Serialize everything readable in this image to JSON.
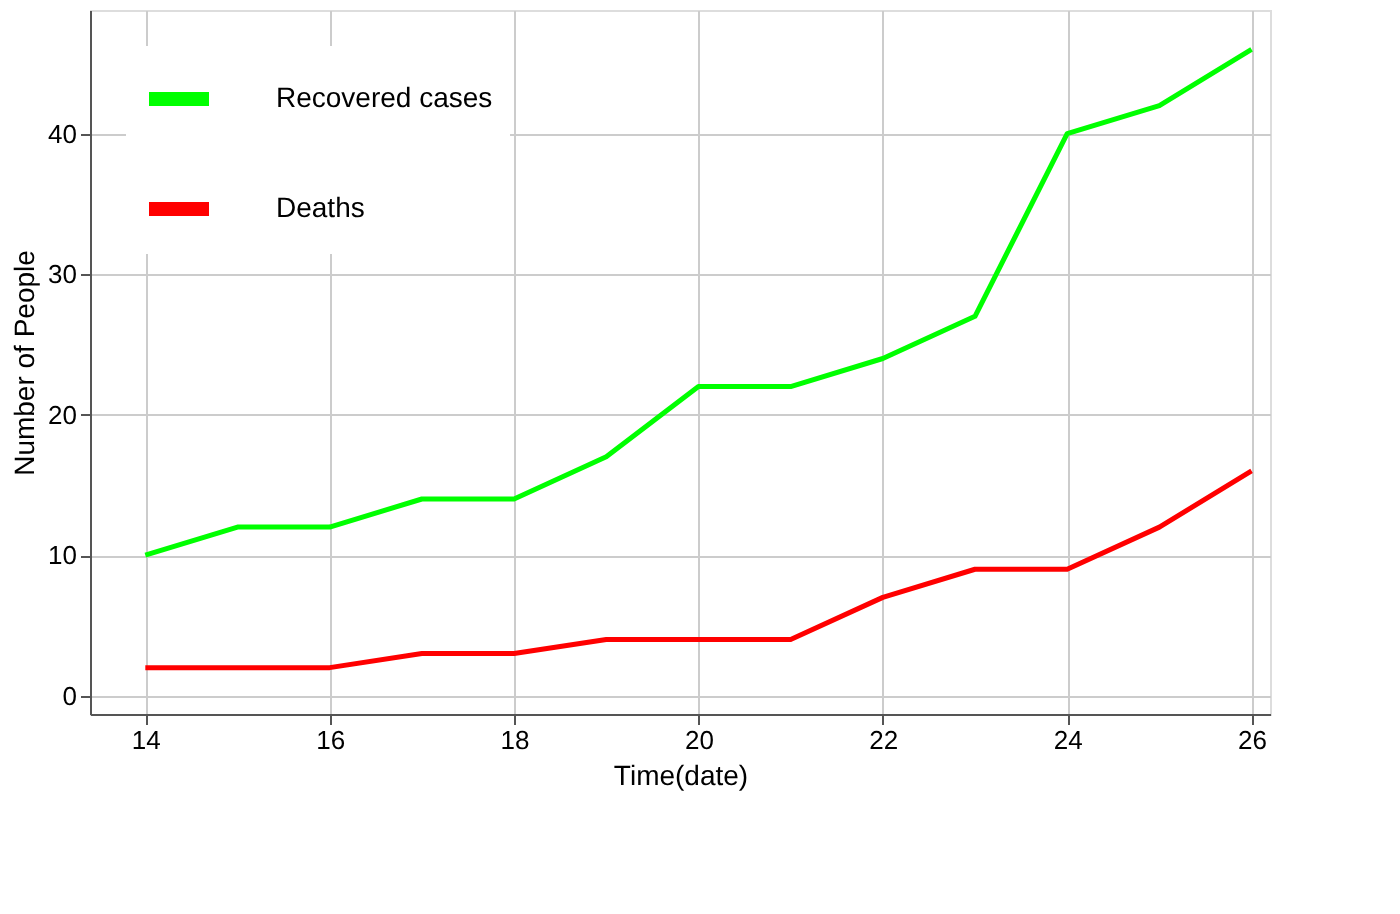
{
  "chart_data": {
    "type": "line",
    "xlabel": "Time(date)",
    "ylabel": "Number of People",
    "x": [
      14,
      15,
      16,
      17,
      18,
      19,
      20,
      21,
      22,
      23,
      24,
      25,
      26
    ],
    "series": [
      {
        "name": "Recovered cases",
        "color": "#00ff00",
        "values": [
          10,
          12,
          12,
          14,
          14,
          17,
          22,
          22,
          24,
          27,
          40,
          42,
          46
        ]
      },
      {
        "name": "Deaths",
        "color": "#ff0000",
        "values": [
          2,
          2,
          2,
          3,
          3,
          4,
          4,
          4,
          7,
          9,
          9,
          12,
          16
        ]
      }
    ],
    "xlim": [
      13.4,
      26.2
    ],
    "ylim": [
      -1.3,
      48.8
    ],
    "xticks": [
      14,
      16,
      18,
      20,
      22,
      24,
      26
    ],
    "yticks": [
      0,
      10,
      20,
      30,
      40
    ],
    "grid": true,
    "legend": "top left",
    "marker": "none",
    "line_style": "solid"
  }
}
